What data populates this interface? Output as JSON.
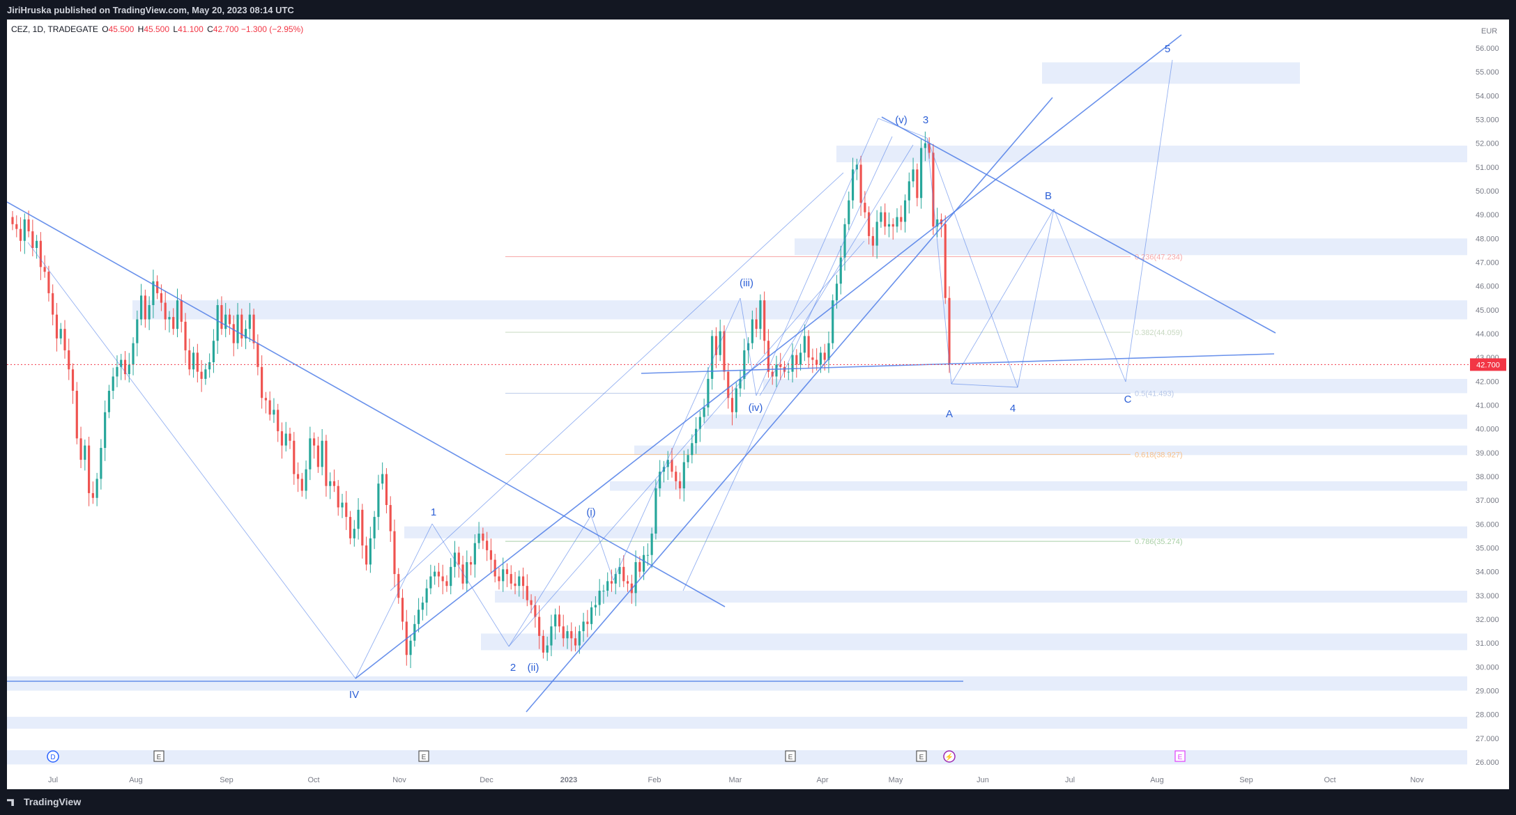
{
  "header": {
    "published": "JiriHruska published on TradingView.com, May 20, 2023 08:14 UTC"
  },
  "symbol": {
    "name": "CEZ, 1D, TRADEGATE",
    "o_label": "O",
    "o": "45.500",
    "h_label": "H",
    "h": "45.500",
    "l_label": "L",
    "l": "41.100",
    "c_label": "C",
    "c": "42.700",
    "change": "−1.300 (−2.95%)"
  },
  "footer": {
    "brand": "TradingView"
  },
  "colors": {
    "up": "#26a69a",
    "down": "#ef5350",
    "lines": "#4f7ee8",
    "zone": "#e6edfb",
    "axis_text": "#787b86",
    "last_price": "#f23645"
  },
  "chart_data": {
    "type": "candlestick",
    "currency": "EUR",
    "last_price": "42.700",
    "x_labels": [
      "Jul",
      "Aug",
      "Sep",
      "Oct",
      "Nov",
      "Dec",
      "2023",
      "Feb",
      "Mar",
      "Apr",
      "May",
      "Jun",
      "Jul",
      "Aug",
      "Sep",
      "Oct",
      "Nov"
    ],
    "y_ticks": [
      "26.000",
      "27.000",
      "28.000",
      "29.000",
      "30.000",
      "31.000",
      "32.000",
      "33.000",
      "34.000",
      "35.000",
      "36.000",
      "37.000",
      "38.000",
      "39.000",
      "40.000",
      "41.000",
      "42.000",
      "43.000",
      "44.000",
      "45.000",
      "46.000",
      "47.000",
      "48.000",
      "49.000",
      "50.000",
      "51.000",
      "52.000",
      "53.000",
      "54.000",
      "55.000",
      "56.000"
    ],
    "ylim": [
      25.6,
      56.7
    ],
    "fib_levels": [
      {
        "label": "0.236(47.234)",
        "value": 47.234
      },
      {
        "label": "0.382(44.059)",
        "value": 44.059
      },
      {
        "label": "0.5(41.493)",
        "value": 41.493
      },
      {
        "label": "0.618(38.927)",
        "value": 38.927
      },
      {
        "label": "0.786(35.274)",
        "value": 35.274
      }
    ],
    "wave_labels": [
      "IV",
      "1",
      "2",
      "(i)",
      "(ii)",
      "(iii)",
      "(iv)",
      "(v)",
      "3",
      "A",
      "4",
      "B",
      "C",
      "5"
    ],
    "event_markers": [
      "D",
      "E",
      "E",
      "E",
      "E",
      "E"
    ],
    "closes": [
      48.6,
      48.4,
      47.9,
      48.8,
      48.3,
      47.6,
      47.9,
      46.8,
      46.6,
      45.7,
      44.8,
      43.8,
      44.2,
      43.3,
      42.5,
      41.6,
      39.6,
      38.7,
      39.3,
      37.3,
      37.1,
      37.9,
      39.2,
      40.7,
      41.6,
      42.2,
      42.6,
      42.9,
      42.3,
      42.7,
      43.6,
      44.6,
      45.6,
      44.6,
      45.2,
      46.2,
      45.7,
      45.3,
      44.6,
      44.7,
      44.2,
      45.4,
      44.5,
      43.3,
      42.5,
      43.2,
      42.4,
      42.1,
      42.5,
      42.8,
      43.7,
      45.2,
      44.2,
      44.8,
      44.4,
      43.6,
      44.8,
      43.8,
      44.2,
      44.8,
      43.6,
      42.6,
      41.3,
      41.2,
      40.6,
      40.8,
      39.9,
      39.3,
      39.8,
      39.5,
      38.1,
      37.9,
      37.4,
      38.3,
      39.6,
      39.3,
      38.4,
      39.5,
      37.6,
      37.8,
      37.6,
      36.7,
      36.9,
      36.3,
      35.4,
      35.8,
      36.6,
      35.1,
      34.3,
      35.4,
      36.3,
      37.7,
      38.1,
      36.8,
      35.7,
      33.9,
      32.9,
      31.9,
      30.5,
      31.1,
      31.8,
      32.4,
      32.7,
      33.3,
      33.8,
      34.0,
      33.8,
      33.6,
      33.4,
      34.2,
      34.8,
      34.3,
      33.5,
      34.4,
      34.3,
      35.2,
      35.6,
      35.3,
      34.9,
      34.5,
      33.8,
      33.6,
      34.1,
      33.9,
      33.5,
      33.4,
      33.8,
      33.4,
      32.8,
      32.6,
      32.1,
      31.3,
      30.6,
      30.9,
      31.7,
      32.2,
      31.7,
      31.2,
      31.5,
      31.2,
      30.9,
      31.5,
      31.9,
      31.8,
      32.5,
      32.6,
      33.2,
      33.2,
      33.6,
      33.5,
      33.9,
      34.2,
      33.6,
      33.5,
      33.1,
      34.4,
      34.0,
      34.7,
      34.7,
      35.6,
      37.5,
      38.2,
      38.4,
      38.7,
      38.2,
      37.8,
      37.5,
      38.6,
      38.9,
      39.4,
      40.0,
      40.5,
      40.9,
      42.1,
      43.9,
      43.1,
      44.1,
      42.4,
      41.3,
      40.7,
      41.7,
      42.1,
      43.3,
      43.6,
      44.6,
      44.2,
      45.4,
      43.7,
      42.4,
      42.2,
      42.7,
      42.6,
      42.4,
      42.4,
      43.1,
      42.7,
      43.2,
      43.9,
      43.0,
      42.9,
      42.7,
      43.2,
      42.9,
      43.6,
      45.4,
      46.1,
      47.2,
      48.6,
      49.6,
      50.9,
      51.1,
      49.5,
      49.1,
      48.1,
      47.7,
      48.7,
      49.1,
      48.5,
      48.6,
      48.5,
      48.9,
      48.7,
      49.6,
      50.4,
      50.9,
      49.7,
      51.8,
      52.0,
      51.6,
      48.5,
      48.8,
      48.6,
      45.5,
      42.7
    ]
  }
}
